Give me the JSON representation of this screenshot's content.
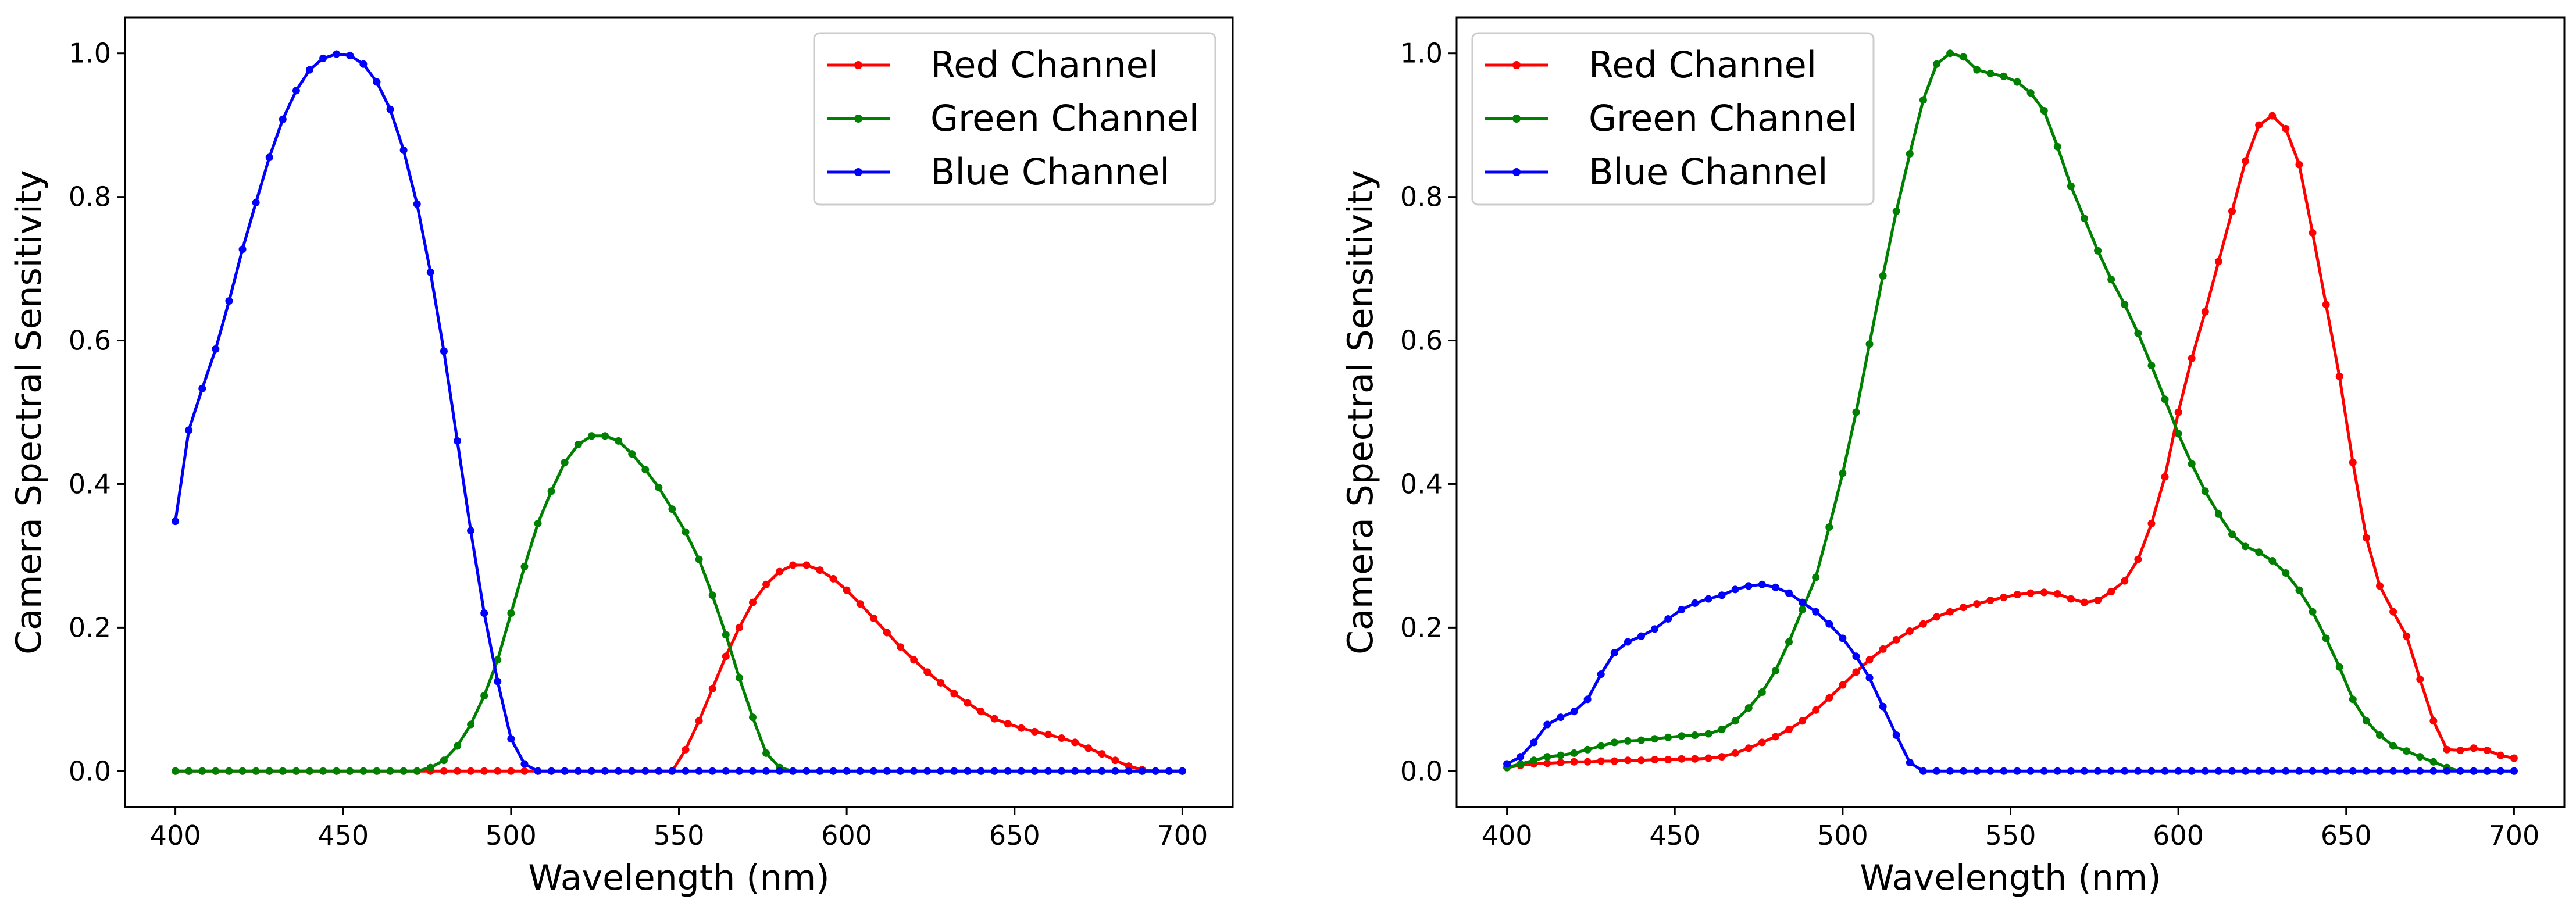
{
  "chart_data": [
    {
      "type": "line",
      "title": "",
      "xlabel": "Wavelength (nm)",
      "ylabel": "Camera Spectral Sensitivity",
      "xlim": [
        385,
        715
      ],
      "ylim": [
        -0.05,
        1.05
      ],
      "xticks": [
        400,
        450,
        500,
        550,
        600,
        650,
        700
      ],
      "xtick_labels": [
        "400",
        "450",
        "500",
        "550",
        "600",
        "650",
        "700"
      ],
      "yticks": [
        0.0,
        0.2,
        0.4,
        0.6,
        0.8,
        1.0
      ],
      "ytick_labels": [
        "0.0",
        "0.2",
        "0.4",
        "0.6",
        "0.8",
        "1.0"
      ],
      "grid": false,
      "legend_position": "top-right",
      "x": [
        400,
        404,
        408,
        412,
        416,
        420,
        424,
        428,
        432,
        436,
        440,
        444,
        448,
        452,
        456,
        460,
        464,
        468,
        472,
        476,
        480,
        484,
        488,
        492,
        496,
        500,
        504,
        508,
        512,
        516,
        520,
        524,
        528,
        532,
        536,
        540,
        544,
        548,
        552,
        556,
        560,
        564,
        568,
        572,
        576,
        580,
        584,
        588,
        592,
        596,
        600,
        604,
        608,
        612,
        616,
        620,
        624,
        628,
        632,
        636,
        640,
        644,
        648,
        652,
        656,
        660,
        664,
        668,
        672,
        676,
        680,
        684,
        688,
        692,
        696,
        700
      ],
      "series": [
        {
          "name": "Red Channel",
          "color": "#ff0000",
          "values": [
            0,
            0,
            0,
            0,
            0,
            0,
            0,
            0,
            0,
            0,
            0,
            0,
            0,
            0,
            0,
            0,
            0,
            0,
            0,
            0,
            0,
            0,
            0,
            0,
            0,
            0,
            0,
            0,
            0,
            0,
            0,
            0,
            0,
            0,
            0,
            0,
            0,
            0,
            0.03,
            0.07,
            0.115,
            0.16,
            0.2,
            0.235,
            0.26,
            0.278,
            0.287,
            0.287,
            0.28,
            0.268,
            0.252,
            0.233,
            0.213,
            0.193,
            0.173,
            0.155,
            0.138,
            0.123,
            0.108,
            0.095,
            0.083,
            0.073,
            0.066,
            0.06,
            0.055,
            0.051,
            0.046,
            0.04,
            0.032,
            0.024,
            0.015,
            0.007,
            0.002,
            0,
            0,
            0
          ]
        },
        {
          "name": "Green Channel",
          "color": "#008000",
          "values": [
            0,
            0,
            0,
            0,
            0,
            0,
            0,
            0,
            0,
            0,
            0,
            0,
            0,
            0,
            0,
            0,
            0,
            0,
            0,
            0.005,
            0.015,
            0.035,
            0.065,
            0.105,
            0.155,
            0.22,
            0.285,
            0.345,
            0.39,
            0.43,
            0.455,
            0.467,
            0.467,
            0.46,
            0.442,
            0.42,
            0.395,
            0.365,
            0.333,
            0.295,
            0.245,
            0.19,
            0.13,
            0.075,
            0.025,
            0.005,
            0,
            0,
            0,
            0,
            0,
            0,
            0,
            0,
            0,
            0,
            0,
            0,
            0,
            0,
            0,
            0,
            0,
            0,
            0,
            0,
            0,
            0,
            0,
            0,
            0,
            0,
            0,
            0,
            0,
            0
          ]
        },
        {
          "name": "Blue Channel",
          "color": "#0000ff",
          "values": [
            0.348,
            0.475,
            0.533,
            0.588,
            0.655,
            0.727,
            0.792,
            0.855,
            0.908,
            0.948,
            0.977,
            0.993,
            0.999,
            0.997,
            0.985,
            0.96,
            0.922,
            0.865,
            0.79,
            0.695,
            0.585,
            0.46,
            0.335,
            0.22,
            0.125,
            0.045,
            0.01,
            0,
            0,
            0,
            0,
            0,
            0,
            0,
            0,
            0,
            0,
            0,
            0,
            0,
            0,
            0,
            0,
            0,
            0,
            0,
            0,
            0,
            0,
            0,
            0,
            0,
            0,
            0,
            0,
            0,
            0,
            0,
            0,
            0,
            0,
            0,
            0,
            0,
            0,
            0,
            0,
            0,
            0,
            0,
            0,
            0,
            0,
            0,
            0,
            0
          ]
        }
      ]
    },
    {
      "type": "line",
      "title": "",
      "xlabel": "Wavelength (nm)",
      "ylabel": "Camera Spectral Sensitivity",
      "xlim": [
        385,
        715
      ],
      "ylim": [
        -0.05,
        1.05
      ],
      "xticks": [
        400,
        450,
        500,
        550,
        600,
        650,
        700
      ],
      "xtick_labels": [
        "400",
        "450",
        "500",
        "550",
        "600",
        "650",
        "700"
      ],
      "yticks": [
        0.0,
        0.2,
        0.4,
        0.6,
        0.8,
        1.0
      ],
      "ytick_labels": [
        "0.0",
        "0.2",
        "0.4",
        "0.6",
        "0.8",
        "1.0"
      ],
      "grid": false,
      "legend_position": "top-left",
      "x": [
        400,
        404,
        408,
        412,
        416,
        420,
        424,
        428,
        432,
        436,
        440,
        444,
        448,
        452,
        456,
        460,
        464,
        468,
        472,
        476,
        480,
        484,
        488,
        492,
        496,
        500,
        504,
        508,
        512,
        516,
        520,
        524,
        528,
        532,
        536,
        540,
        544,
        548,
        552,
        556,
        560,
        564,
        568,
        572,
        576,
        580,
        584,
        588,
        592,
        596,
        600,
        604,
        608,
        612,
        616,
        620,
        624,
        628,
        632,
        636,
        640,
        644,
        648,
        652,
        656,
        660,
        664,
        668,
        672,
        676,
        680,
        684,
        688,
        692,
        696,
        700
      ],
      "series": [
        {
          "name": "Red Channel",
          "color": "#ff0000",
          "values": [
            0.005,
            0.008,
            0.01,
            0.011,
            0.012,
            0.013,
            0.013,
            0.014,
            0.014,
            0.015,
            0.015,
            0.016,
            0.016,
            0.017,
            0.017,
            0.018,
            0.02,
            0.025,
            0.032,
            0.04,
            0.048,
            0.058,
            0.07,
            0.085,
            0.102,
            0.12,
            0.138,
            0.155,
            0.17,
            0.183,
            0.195,
            0.205,
            0.215,
            0.222,
            0.228,
            0.233,
            0.238,
            0.242,
            0.246,
            0.248,
            0.249,
            0.247,
            0.24,
            0.235,
            0.238,
            0.25,
            0.265,
            0.295,
            0.345,
            0.41,
            0.5,
            0.575,
            0.64,
            0.71,
            0.78,
            0.85,
            0.9,
            0.913,
            0.895,
            0.845,
            0.75,
            0.65,
            0.55,
            0.43,
            0.325,
            0.258,
            0.222,
            0.188,
            0.128,
            0.07,
            0.03,
            0.029,
            0.032,
            0.029,
            0.022,
            0.018
          ]
        },
        {
          "name": "Green Channel",
          "color": "#008000",
          "values": [
            0.005,
            0.01,
            0.015,
            0.02,
            0.022,
            0.025,
            0.03,
            0.035,
            0.04,
            0.042,
            0.043,
            0.045,
            0.047,
            0.049,
            0.05,
            0.052,
            0.058,
            0.07,
            0.088,
            0.11,
            0.14,
            0.18,
            0.225,
            0.27,
            0.34,
            0.415,
            0.5,
            0.595,
            0.69,
            0.78,
            0.86,
            0.935,
            0.985,
            1.0,
            0.995,
            0.977,
            0.972,
            0.968,
            0.96,
            0.945,
            0.92,
            0.87,
            0.815,
            0.77,
            0.725,
            0.685,
            0.65,
            0.61,
            0.565,
            0.518,
            0.47,
            0.428,
            0.39,
            0.358,
            0.33,
            0.313,
            0.305,
            0.293,
            0.276,
            0.252,
            0.222,
            0.185,
            0.145,
            0.1,
            0.07,
            0.05,
            0.035,
            0.028,
            0.02,
            0.013,
            0.005,
            0,
            0,
            0,
            0,
            0
          ]
        },
        {
          "name": "Blue Channel",
          "color": "#0000ff",
          "values": [
            0.01,
            0.02,
            0.04,
            0.065,
            0.075,
            0.083,
            0.1,
            0.135,
            0.165,
            0.18,
            0.188,
            0.198,
            0.212,
            0.225,
            0.234,
            0.24,
            0.245,
            0.253,
            0.258,
            0.26,
            0.256,
            0.248,
            0.235,
            0.222,
            0.205,
            0.185,
            0.16,
            0.13,
            0.09,
            0.05,
            0.012,
            0,
            0,
            0,
            0,
            0,
            0,
            0,
            0,
            0,
            0,
            0,
            0,
            0,
            0,
            0,
            0,
            0,
            0,
            0,
            0,
            0,
            0,
            0,
            0,
            0,
            0,
            0,
            0,
            0,
            0,
            0,
            0,
            0,
            0,
            0,
            0,
            0,
            0,
            0,
            0,
            0,
            0,
            0,
            0,
            0
          ]
        }
      ]
    }
  ]
}
